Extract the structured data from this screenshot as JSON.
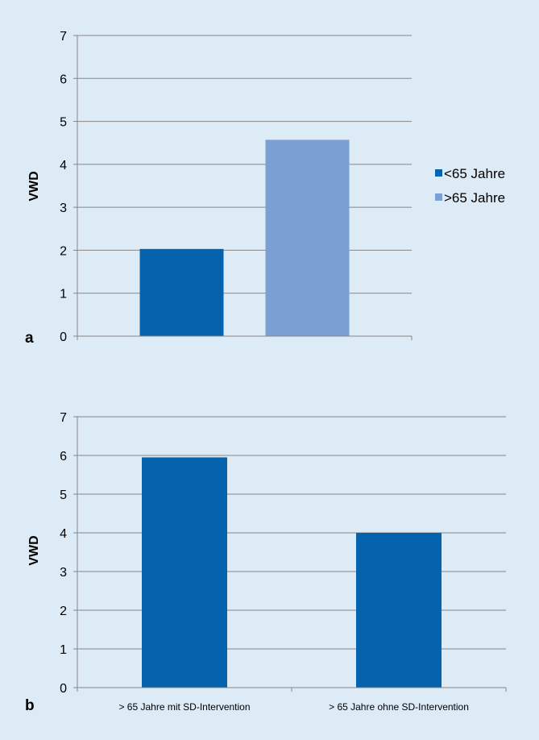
{
  "colors": {
    "background": "#ddebf7",
    "series_dark": "#0563ad",
    "series_light": "#7b9ed3",
    "gridline": "#868686"
  },
  "chart_data": [
    {
      "type": "bar",
      "panel_label": "a",
      "ylabel": "VWD",
      "ylim": [
        0,
        7
      ],
      "yticks": [
        "0",
        "1",
        "2",
        "3",
        "4",
        "5",
        "6",
        "7"
      ],
      "categories": [
        ""
      ],
      "series": [
        {
          "name": "<65 Jahre",
          "values": [
            2.03
          ]
        },
        {
          "name": ">65 Jahre",
          "values": [
            4.57
          ]
        }
      ],
      "grid": true,
      "legend": "right"
    },
    {
      "type": "bar",
      "panel_label": "b",
      "ylabel": "VWD",
      "ylim": [
        0,
        7
      ],
      "yticks": [
        "0",
        "1",
        "2",
        "3",
        "4",
        "5",
        "6",
        "7"
      ],
      "categories": [
        "> 65 Jahre mit SD-Intervention",
        "> 65 Jahre ohne SD-Intervention"
      ],
      "values": [
        5.95,
        4.0
      ],
      "grid": true,
      "legend": "none"
    }
  ]
}
